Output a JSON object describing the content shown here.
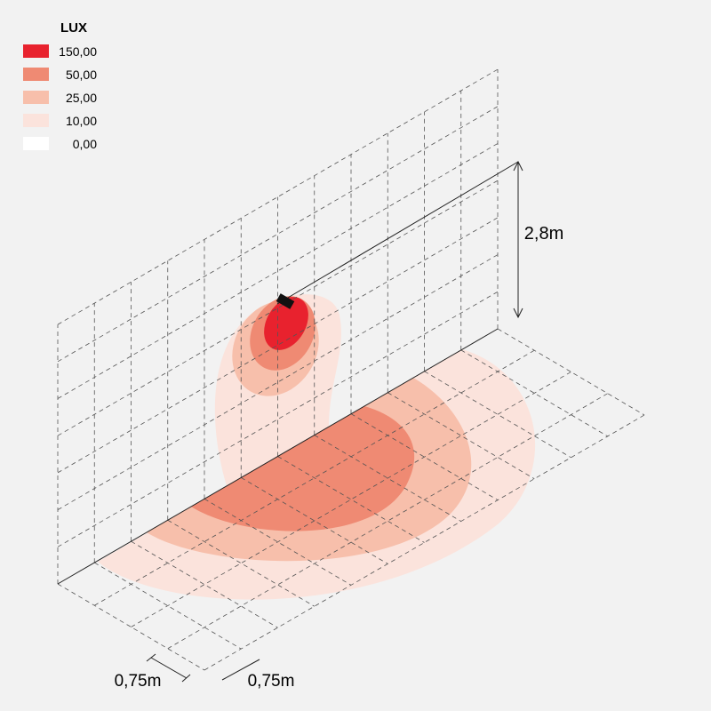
{
  "legend": {
    "title": "LUX",
    "items": [
      {
        "label": "150,00",
        "color": "#e8222e"
      },
      {
        "label": "50,00",
        "color": "#ef8a73"
      },
      {
        "label": "25,00",
        "color": "#f7bfab"
      },
      {
        "label": "10,00",
        "color": "#fbe3dc"
      },
      {
        "label": "0,00",
        "color": "#ffffff"
      }
    ]
  },
  "dimensions": {
    "height": "2,8m",
    "grid_x": "0,75m",
    "grid_y": "0,75m"
  }
}
